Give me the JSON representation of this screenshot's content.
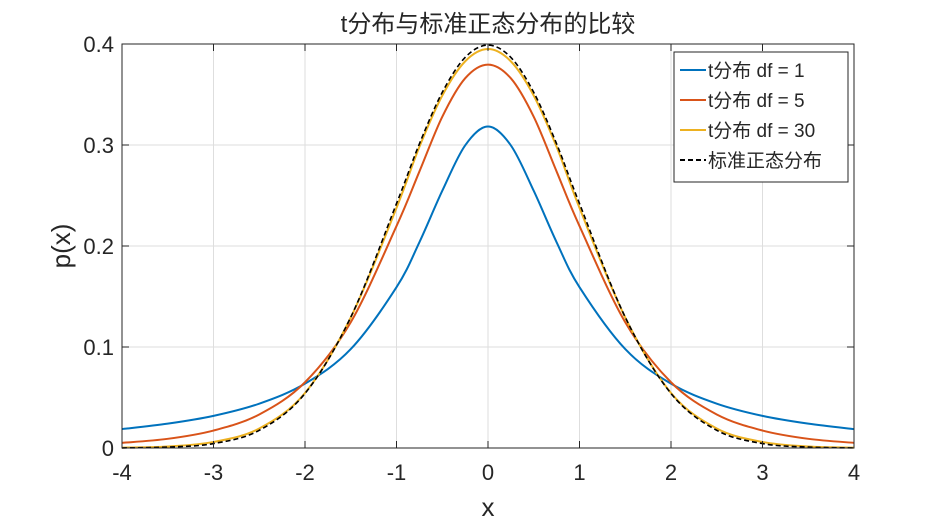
{
  "chart_data": {
    "type": "line",
    "title": "t分布与标准正态分布的比较",
    "xlabel": "x",
    "ylabel": "p(x)",
    "xlim": [
      -4,
      4
    ],
    "ylim": [
      0,
      0.4
    ],
    "xticks": [
      -4,
      -3,
      -2,
      -1,
      0,
      1,
      2,
      3,
      4
    ],
    "xtick_labels": [
      "-4",
      "-3",
      "-2",
      "-1",
      "0",
      "1",
      "2",
      "3",
      "4"
    ],
    "yticks": [
      0,
      0.1,
      0.2,
      0.3,
      0.4
    ],
    "ytick_labels": [
      "0",
      "0.1",
      "0.2",
      "0.3",
      "0.4"
    ],
    "grid": true,
    "legend_position": "top-right",
    "x": [
      -4,
      -3.5,
      -3,
      -2.5,
      -2,
      -1.5,
      -1,
      -0.75,
      -0.5,
      -0.25,
      0,
      0.25,
      0.5,
      0.75,
      1,
      1.5,
      2,
      2.5,
      3,
      3.5,
      4
    ],
    "series": [
      {
        "name": "t分布 df = 1",
        "color": "#0072BD",
        "style": "solid",
        "values": [
          0.0187,
          0.0241,
          0.0318,
          0.0439,
          0.0637,
          0.0979,
          0.1592,
          0.2037,
          0.2546,
          0.2996,
          0.3183,
          0.2996,
          0.2546,
          0.2037,
          0.1592,
          0.0979,
          0.0637,
          0.0439,
          0.0318,
          0.0241,
          0.0187
        ]
      },
      {
        "name": "t分布 df = 5",
        "color": "#D95319",
        "style": "solid",
        "values": [
          0.0051,
          0.0091,
          0.0173,
          0.0332,
          0.0651,
          0.1245,
          0.2197,
          0.2737,
          0.3279,
          0.366,
          0.3796,
          0.366,
          0.3279,
          0.2737,
          0.2197,
          0.1245,
          0.0651,
          0.0332,
          0.0173,
          0.0091,
          0.0051
        ]
      },
      {
        "name": "t分布 df = 30",
        "color": "#EDB120",
        "style": "solid",
        "values": [
          0.0004,
          0.0015,
          0.006,
          0.0193,
          0.0545,
          0.1292,
          0.2378,
          0.2981,
          0.3489,
          0.3828,
          0.395,
          0.3828,
          0.3489,
          0.2981,
          0.2378,
          0.1292,
          0.0545,
          0.0193,
          0.006,
          0.0015,
          0.0004
        ]
      },
      {
        "name": "标准正态分布",
        "color": "#000000",
        "style": "dashed",
        "values": [
          0.0001,
          0.0009,
          0.0044,
          0.0175,
          0.054,
          0.1295,
          0.242,
          0.3011,
          0.3521,
          0.3867,
          0.3989,
          0.3867,
          0.3521,
          0.3011,
          0.242,
          0.1295,
          0.054,
          0.0175,
          0.0044,
          0.0009,
          0.0001
        ]
      }
    ]
  }
}
